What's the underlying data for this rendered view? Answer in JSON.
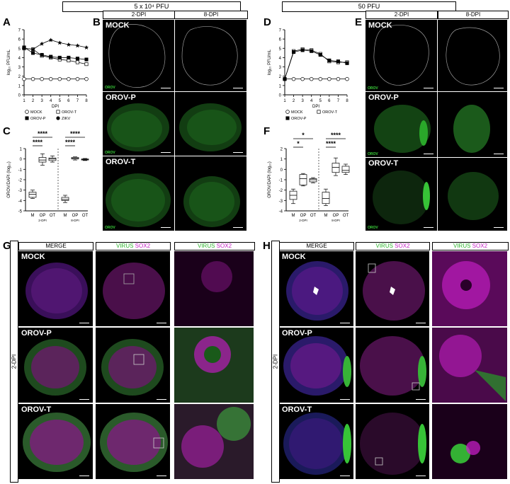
{
  "headers": {
    "left": "5 x 10⁴ PFU",
    "right": "50 PFU"
  },
  "panels": {
    "A": "A",
    "B": "B",
    "C": "C",
    "D": "D",
    "E": "E",
    "F": "F",
    "G": "G",
    "H": "H"
  },
  "columns": {
    "dpi2": "2-DPI",
    "dpi8": "8-DPI",
    "merge": "MERGE",
    "virus": "VIRUS",
    "sox2": "SOX2"
  },
  "rows": {
    "mock": "MOCK",
    "orovp": "OROV-P",
    "orovt": "OROV-T"
  },
  "channel_label": "OROV",
  "side_label": "2-DPI",
  "colors": {
    "green": "#2fb52f",
    "magenta": "#c21fc2",
    "tile": "#000000"
  },
  "chart_data": [
    {
      "id": "A",
      "type": "line",
      "xlabel": "DPI",
      "ylabel": "log₁₀ PFU/mL",
      "x": [
        1,
        2,
        3,
        4,
        5,
        6,
        7,
        8
      ],
      "xlim": [
        1,
        8
      ],
      "ylim": [
        0,
        7
      ],
      "yticks": [
        0,
        1,
        2,
        3,
        4,
        5,
        6,
        7
      ],
      "series": [
        {
          "name": "MOCK",
          "values": [
            1.7,
            1.7,
            1.7,
            1.7,
            1.7,
            1.7,
            1.7,
            1.7
          ]
        },
        {
          "name": "OROV-T",
          "values": [
            5.0,
            4.9,
            4.2,
            4.0,
            3.8,
            3.7,
            3.5,
            3.3
          ]
        },
        {
          "name": "OROV-P",
          "values": [
            5.1,
            4.5,
            4.3,
            4.1,
            4.0,
            4.0,
            3.9,
            3.8
          ]
        },
        {
          "name": "ZIKV",
          "values": [
            5.0,
            4.9,
            5.5,
            5.9,
            5.6,
            5.4,
            5.3,
            5.1
          ]
        }
      ]
    },
    {
      "id": "C",
      "type": "box",
      "ylabel": "OROV/DAPI (log₁₀)",
      "ylim": [
        -5,
        1
      ],
      "yticks": [
        -5,
        -4,
        -3,
        -2,
        -1,
        0,
        1
      ],
      "categories": [
        "M",
        "OP",
        "OT",
        "M",
        "OP",
        "OT"
      ],
      "groups": [
        "2-DPI",
        "8-DPI"
      ],
      "boxes": [
        {
          "min": -3.8,
          "q1": -3.7,
          "med": -3.4,
          "q3": -3.2,
          "max": -3.0
        },
        {
          "min": -0.6,
          "q1": -0.3,
          "med": -0.1,
          "q3": 0.15,
          "max": 0.5
        },
        {
          "min": -0.3,
          "q1": -0.15,
          "med": 0.0,
          "q3": 0.1,
          "max": 0.3
        },
        {
          "min": -4.2,
          "q1": -4.0,
          "med": -3.9,
          "q3": -3.7,
          "max": -3.5
        },
        {
          "min": -0.1,
          "q1": 0.0,
          "med": 0.05,
          "q3": 0.15,
          "max": 0.2
        },
        {
          "min": -0.15,
          "q1": -0.1,
          "med": -0.05,
          "q3": 0.0,
          "max": 0.05
        }
      ],
      "annotations": [
        "****",
        "****",
        "****",
        "****"
      ]
    },
    {
      "id": "D",
      "type": "line",
      "xlabel": "DPI",
      "ylabel": "log₁₀ PFU/mL",
      "x": [
        1,
        2,
        3,
        4,
        5,
        6,
        7,
        8
      ],
      "xlim": [
        1,
        8
      ],
      "ylim": [
        0,
        7
      ],
      "yticks": [
        0,
        1,
        2,
        3,
        4,
        5,
        6,
        7
      ],
      "series": [
        {
          "name": "MOCK",
          "values": [
            1.7,
            1.7,
            1.7,
            1.7,
            1.7,
            1.7,
            1.7,
            1.7
          ]
        },
        {
          "name": "OROV-T",
          "values": [
            1.7,
            4.7,
            4.9,
            4.8,
            4.4,
            3.6,
            3.5,
            3.5
          ]
        },
        {
          "name": "OROV-P",
          "values": [
            1.7,
            4.6,
            4.8,
            4.7,
            4.3,
            3.7,
            3.6,
            3.4
          ]
        }
      ]
    },
    {
      "id": "F",
      "type": "box",
      "ylabel": "OROV/DAPI (log₁₀)",
      "ylim": [
        -4,
        2
      ],
      "yticks": [
        -4,
        -3,
        -2,
        -1,
        0,
        1,
        2
      ],
      "categories": [
        "M",
        "OP",
        "OT",
        "M",
        "OP",
        "OT"
      ],
      "groups": [
        "2-DPI",
        "8-DPI"
      ],
      "boxes": [
        {
          "min": -3.3,
          "q1": -2.9,
          "med": -2.5,
          "q3": -2.1,
          "max": -1.9
        },
        {
          "min": -1.6,
          "q1": -1.5,
          "med": -0.9,
          "q3": -0.5,
          "max": -0.4
        },
        {
          "min": -1.3,
          "q1": -1.2,
          "med": -1.0,
          "q3": -0.9,
          "max": -0.8
        },
        {
          "min": -3.5,
          "q1": -3.3,
          "med": -2.8,
          "q3": -2.2,
          "max": -1.9
        },
        {
          "min": -0.6,
          "q1": -0.3,
          "med": 0.2,
          "q3": 0.6,
          "max": 1.1
        },
        {
          "min": -0.5,
          "q1": -0.3,
          "med": -0.1,
          "q3": 0.3,
          "max": 0.5
        }
      ],
      "annotations": [
        "*",
        "*",
        "****",
        "****"
      ]
    }
  ]
}
